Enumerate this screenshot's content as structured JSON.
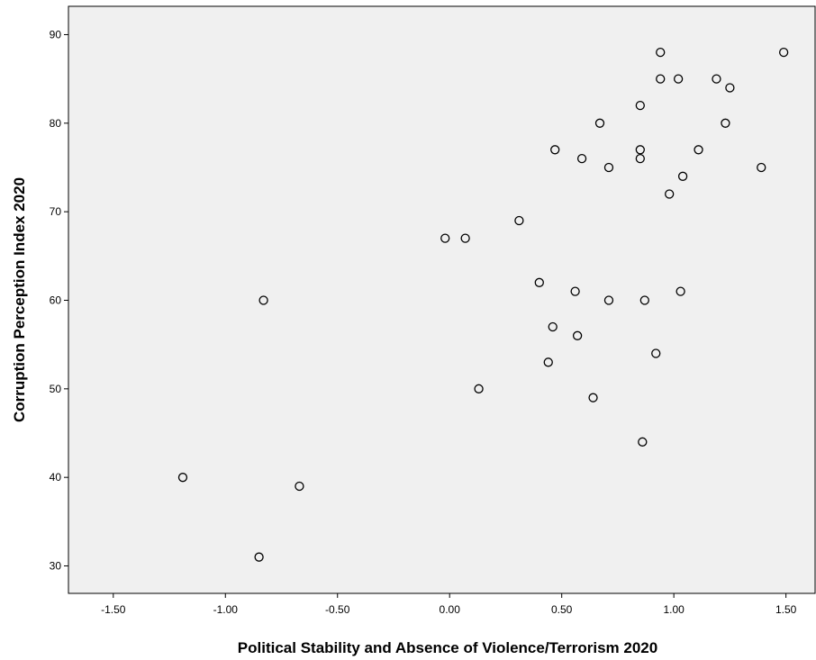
{
  "chart_data": {
    "type": "scatter",
    "title": "",
    "xlabel": "Political Stability and Absence of Violence/Terrorism 2020",
    "ylabel": "Corruption Perception Index 2020",
    "xlim": [
      -1.7,
      1.63
    ],
    "ylim": [
      26.9,
      93.2
    ],
    "x_ticks": [
      "-1.50",
      "-1.00",
      "-0.50",
      "0.00",
      "0.50",
      "1.00",
      "1.50"
    ],
    "y_ticks": [
      "30",
      "40",
      "50",
      "60",
      "70",
      "80",
      "90"
    ],
    "grid": false,
    "legend": "none",
    "plot_background": "#f0f0f0",
    "marker_color": "#000000",
    "points": [
      {
        "x": -1.19,
        "y": 40
      },
      {
        "x": -0.85,
        "y": 31
      },
      {
        "x": -0.83,
        "y": 60
      },
      {
        "x": -0.67,
        "y": 39
      },
      {
        "x": -0.02,
        "y": 67
      },
      {
        "x": 0.07,
        "y": 67
      },
      {
        "x": 0.13,
        "y": 50
      },
      {
        "x": 0.31,
        "y": 69
      },
      {
        "x": 0.4,
        "y": 62
      },
      {
        "x": 0.44,
        "y": 53
      },
      {
        "x": 0.46,
        "y": 57
      },
      {
        "x": 0.47,
        "y": 77
      },
      {
        "x": 0.56,
        "y": 61
      },
      {
        "x": 0.57,
        "y": 56
      },
      {
        "x": 0.59,
        "y": 76
      },
      {
        "x": 0.64,
        "y": 49
      },
      {
        "x": 0.67,
        "y": 80
      },
      {
        "x": 0.71,
        "y": 60
      },
      {
        "x": 0.71,
        "y": 75
      },
      {
        "x": 0.85,
        "y": 82
      },
      {
        "x": 0.85,
        "y": 77
      },
      {
        "x": 0.85,
        "y": 76
      },
      {
        "x": 0.86,
        "y": 44
      },
      {
        "x": 0.87,
        "y": 60
      },
      {
        "x": 0.92,
        "y": 54
      },
      {
        "x": 0.94,
        "y": 88
      },
      {
        "x": 0.94,
        "y": 85
      },
      {
        "x": 0.98,
        "y": 72
      },
      {
        "x": 1.02,
        "y": 85
      },
      {
        "x": 1.03,
        "y": 61
      },
      {
        "x": 1.04,
        "y": 74
      },
      {
        "x": 1.11,
        "y": 77
      },
      {
        "x": 1.19,
        "y": 85
      },
      {
        "x": 1.23,
        "y": 80
      },
      {
        "x": 1.25,
        "y": 84
      },
      {
        "x": 1.39,
        "y": 75
      },
      {
        "x": 1.49,
        "y": 88
      }
    ]
  }
}
